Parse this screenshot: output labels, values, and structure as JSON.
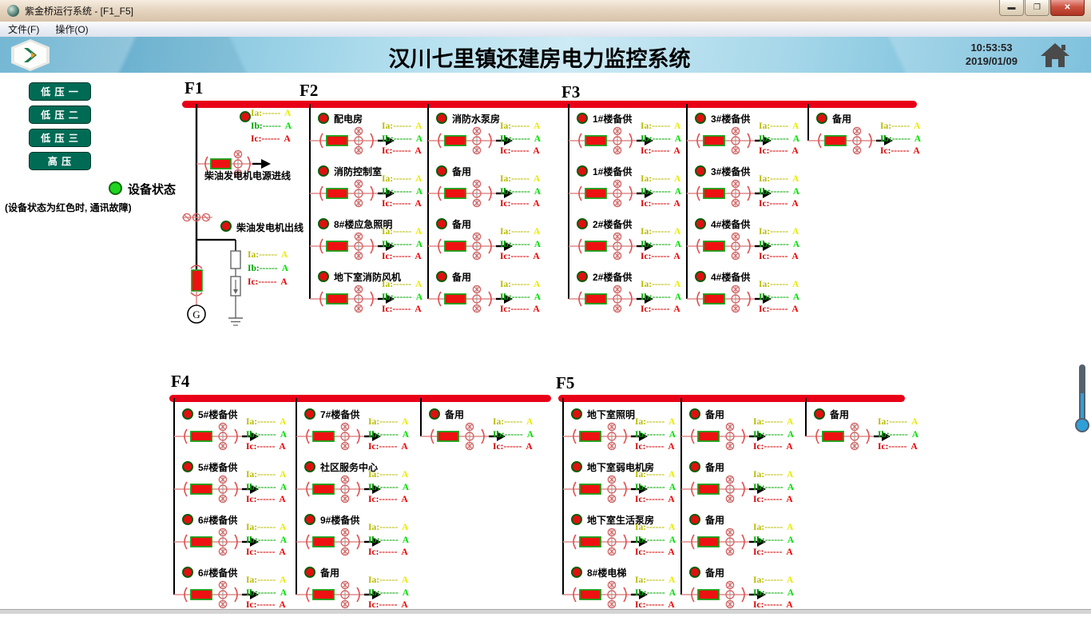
{
  "window": {
    "title": "紫金桥运行系统 - [F1_F5]",
    "menu_items": [
      "文件(F)",
      "操作(O)"
    ]
  },
  "header": {
    "title": "汉川七里镇还建房电力监控系统",
    "time": "10:53:53",
    "date": "2019/01/09"
  },
  "sidebar": {
    "buttons": [
      "低 压 一",
      "低 压 二",
      "低 压 三",
      "高 压"
    ],
    "status_label": "设备状态",
    "status_note": "(设备状态为红色时, 通讯故障)"
  },
  "phases": [
    {
      "label": "Ia:",
      "value": "------",
      "unit": "A",
      "color": "#b9bb00",
      "unit_color": "#e9ec00"
    },
    {
      "label": "Ib:",
      "value": "------",
      "unit": "A",
      "color": "#00a400",
      "unit_color": "#00df00"
    },
    {
      "label": "Ic:",
      "value": "------",
      "unit": "A",
      "color": "#d40000",
      "unit_color": "#f00000"
    }
  ],
  "f1": {
    "label": "F1",
    "incoming_label": "柴油发电机电源进线",
    "outgoing_label": "柴油发电机出线",
    "generator": "G"
  },
  "feeders": [
    {
      "label": "F2",
      "columns": [
        {
          "branches": [
            "配电房",
            "消防控制室",
            "8#楼应急照明",
            "地下室消防风机"
          ]
        },
        {
          "branches": [
            "消防水泵房",
            "备用",
            "备用",
            "备用"
          ]
        }
      ]
    },
    {
      "label": "F3",
      "columns": [
        {
          "branches": [
            "1#楼备供",
            "1#楼备供",
            "2#楼备供",
            "2#楼备供"
          ]
        },
        {
          "branches": [
            "3#楼备供",
            "3#楼备供",
            "4#楼备供",
            "4#楼备供"
          ]
        },
        {
          "branches": [
            "备用"
          ]
        }
      ]
    },
    {
      "label": "F4",
      "columns": [
        {
          "branches": [
            "5#楼备供",
            "5#楼备供",
            "6#楼备供",
            "6#楼备供"
          ]
        },
        {
          "branches": [
            "7#楼备供",
            "社区服务中心",
            "9#楼备供",
            "备用"
          ]
        },
        {
          "branches": [
            "备用"
          ]
        }
      ]
    },
    {
      "label": "F5",
      "columns": [
        {
          "branches": [
            "地下室照明",
            "地下室弱电机房",
            "地下室生活泵房",
            "8#楼电梯"
          ]
        },
        {
          "branches": [
            "备用",
            "备用",
            "备用",
            "备用"
          ]
        },
        {
          "branches": [
            "备用"
          ]
        }
      ]
    }
  ],
  "colors": {
    "busbar_red": "#e80017",
    "breaker_fill": "#ee1111",
    "breaker_border": "#18a018",
    "nav_green": "#006b55",
    "led_green": "#1fd41f",
    "status_dot_red": "#e01010"
  }
}
